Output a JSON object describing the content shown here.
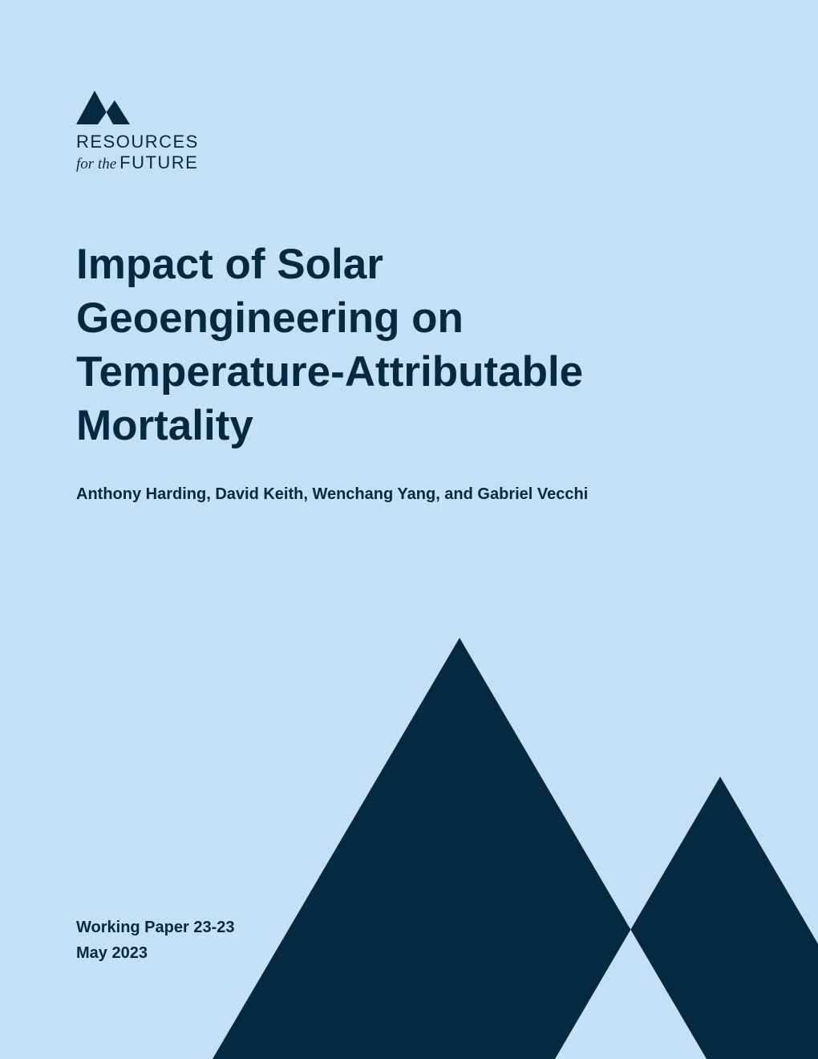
{
  "logo": {
    "line1": "RESOURCES",
    "prefix": "for the",
    "name": "FUTURE"
  },
  "title": {
    "lines": [
      "Impact of Solar",
      "Geoengineering on",
      "Temperature-Attributable",
      "Mortality"
    ]
  },
  "authors": "Anthony Harding, David Keith, Wenchang Yang, and Gabriel Vecchi",
  "series_label": "Working Paper 23-23",
  "date": "May 2023"
}
